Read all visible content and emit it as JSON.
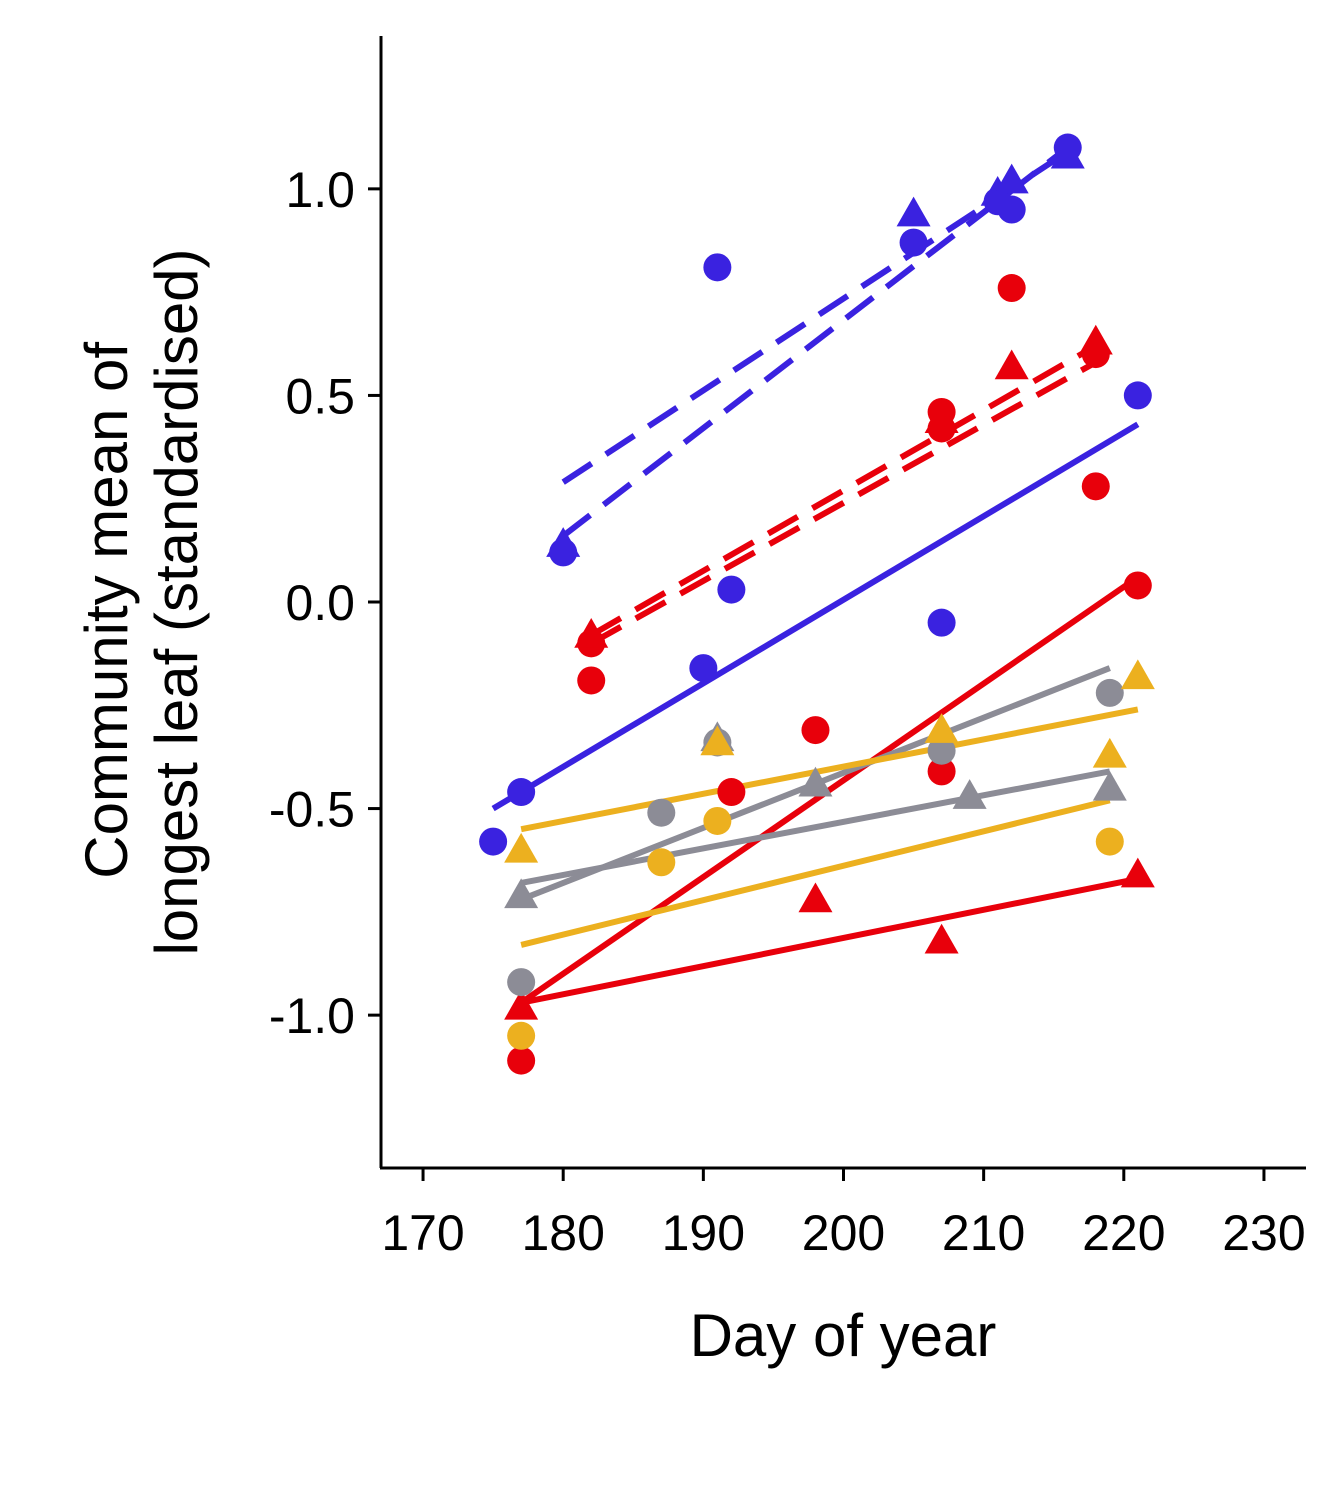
{
  "chart_data": {
    "type": "scatter",
    "xlabel": "Day of year",
    "ylabel": [
      "Community mean of",
      "longest leaf (standardised)"
    ],
    "xlim": [
      167,
      233
    ],
    "ylim": [
      -1.37,
      1.37
    ],
    "xticks": [
      170,
      180,
      190,
      200,
      210,
      220,
      230
    ],
    "xtick_labels": [
      "170",
      "180",
      "190",
      "200",
      "210",
      "220",
      "230"
    ],
    "yticks": [
      -1.0,
      -0.5,
      0.0,
      0.5,
      1.0
    ],
    "ytick_labels": [
      "-1.0",
      "-0.5",
      "0.0",
      "0.5",
      "1.0"
    ],
    "grid": false,
    "series": [
      {
        "color": "#3a22e0",
        "marker": "circle",
        "points": [
          [
            175,
            -0.58
          ],
          [
            177,
            -0.46
          ],
          [
            190,
            -0.16
          ],
          [
            191,
            0.81
          ],
          [
            192,
            0.03
          ],
          [
            207,
            -0.05
          ],
          [
            221,
            0.5
          ]
        ],
        "fit": {
          "x": [
            175,
            221
          ],
          "y": [
            -0.5,
            0.43
          ],
          "style": "solid"
        }
      },
      {
        "color": "#3a22e0",
        "marker": "circle",
        "points": [
          [
            180,
            0.12
          ],
          [
            205,
            0.87
          ],
          [
            211,
            0.97
          ],
          [
            212,
            0.95
          ],
          [
            216,
            1.1
          ]
        ],
        "fit": {
          "x": [
            180,
            216
          ],
          "y": [
            0.29,
            1.09
          ],
          "style": "dashed"
        }
      },
      {
        "color": "#3a22e0",
        "marker": "triangle",
        "points": [
          [
            180,
            0.14
          ],
          [
            205,
            0.94
          ],
          [
            211,
            0.99
          ],
          [
            212,
            1.02
          ],
          [
            216,
            1.08
          ]
        ],
        "fit": {
          "x": [
            180,
            216
          ],
          "y": [
            0.16,
            1.1
          ],
          "style": "dashed"
        }
      },
      {
        "color": "#e8000b",
        "marker": "circle",
        "points": [
          [
            177,
            -1.11
          ],
          [
            182,
            -0.19
          ],
          [
            192,
            -0.46
          ],
          [
            198,
            -0.31
          ],
          [
            207,
            -0.41
          ],
          [
            207,
            0.46
          ],
          [
            212,
            0.76
          ],
          [
            218,
            0.28
          ],
          [
            221,
            0.04
          ]
        ],
        "fit": {
          "x": [
            177,
            221
          ],
          "y": [
            -0.97,
            0.06
          ],
          "style": "solid"
        }
      },
      {
        "color": "#e8000b",
        "marker": "circle",
        "points": [
          [
            182,
            -0.1
          ],
          [
            207,
            0.42
          ],
          [
            218,
            0.6
          ]
        ],
        "fit": {
          "x": [
            182,
            218
          ],
          "y": [
            -0.1,
            0.58
          ],
          "style": "dashed"
        }
      },
      {
        "color": "#e8000b",
        "marker": "triangle",
        "points": [
          [
            177,
            -0.98
          ],
          [
            198,
            -0.72
          ],
          [
            207,
            -0.82
          ],
          [
            221,
            -0.66
          ]
        ],
        "fit": {
          "x": [
            177,
            221
          ],
          "y": [
            -0.97,
            -0.67
          ],
          "style": "solid"
        }
      },
      {
        "color": "#e8000b",
        "marker": "triangle",
        "points": [
          [
            182,
            -0.08
          ],
          [
            207,
            0.44
          ],
          [
            212,
            0.57
          ],
          [
            218,
            0.63
          ]
        ],
        "fit": {
          "x": [
            182,
            218
          ],
          "y": [
            -0.08,
            0.62
          ],
          "style": "dashed"
        }
      },
      {
        "color": "#8c8c96",
        "marker": "circle",
        "points": [
          [
            177,
            -0.92
          ],
          [
            187,
            -0.51
          ],
          [
            191,
            -0.34
          ],
          [
            207,
            -0.36
          ],
          [
            219,
            -0.22
          ]
        ],
        "fit": {
          "x": [
            177,
            219
          ],
          "y": [
            -0.72,
            -0.16
          ],
          "style": "solid"
        }
      },
      {
        "color": "#8c8c96",
        "marker": "triangle",
        "points": [
          [
            177,
            -0.71
          ],
          [
            191,
            -0.33
          ],
          [
            198,
            -0.44
          ],
          [
            209,
            -0.47
          ],
          [
            219,
            -0.45
          ]
        ],
        "fit": {
          "x": [
            177,
            219
          ],
          "y": [
            -0.68,
            -0.41
          ],
          "style": "solid"
        }
      },
      {
        "color": "#ecb01f",
        "marker": "circle",
        "points": [
          [
            177,
            -1.05
          ],
          [
            187,
            -0.63
          ],
          [
            191,
            -0.53
          ],
          [
            219,
            -0.58
          ]
        ],
        "fit": {
          "x": [
            177,
            219
          ],
          "y": [
            -0.83,
            -0.48
          ],
          "style": "solid"
        }
      },
      {
        "color": "#ecb01f",
        "marker": "triangle",
        "points": [
          [
            177,
            -0.6
          ],
          [
            191,
            -0.34
          ],
          [
            207,
            -0.31
          ],
          [
            219,
            -0.37
          ],
          [
            221,
            -0.18
          ]
        ],
        "fit": {
          "x": [
            177,
            221
          ],
          "y": [
            -0.55,
            -0.26
          ],
          "style": "solid"
        }
      }
    ]
  }
}
